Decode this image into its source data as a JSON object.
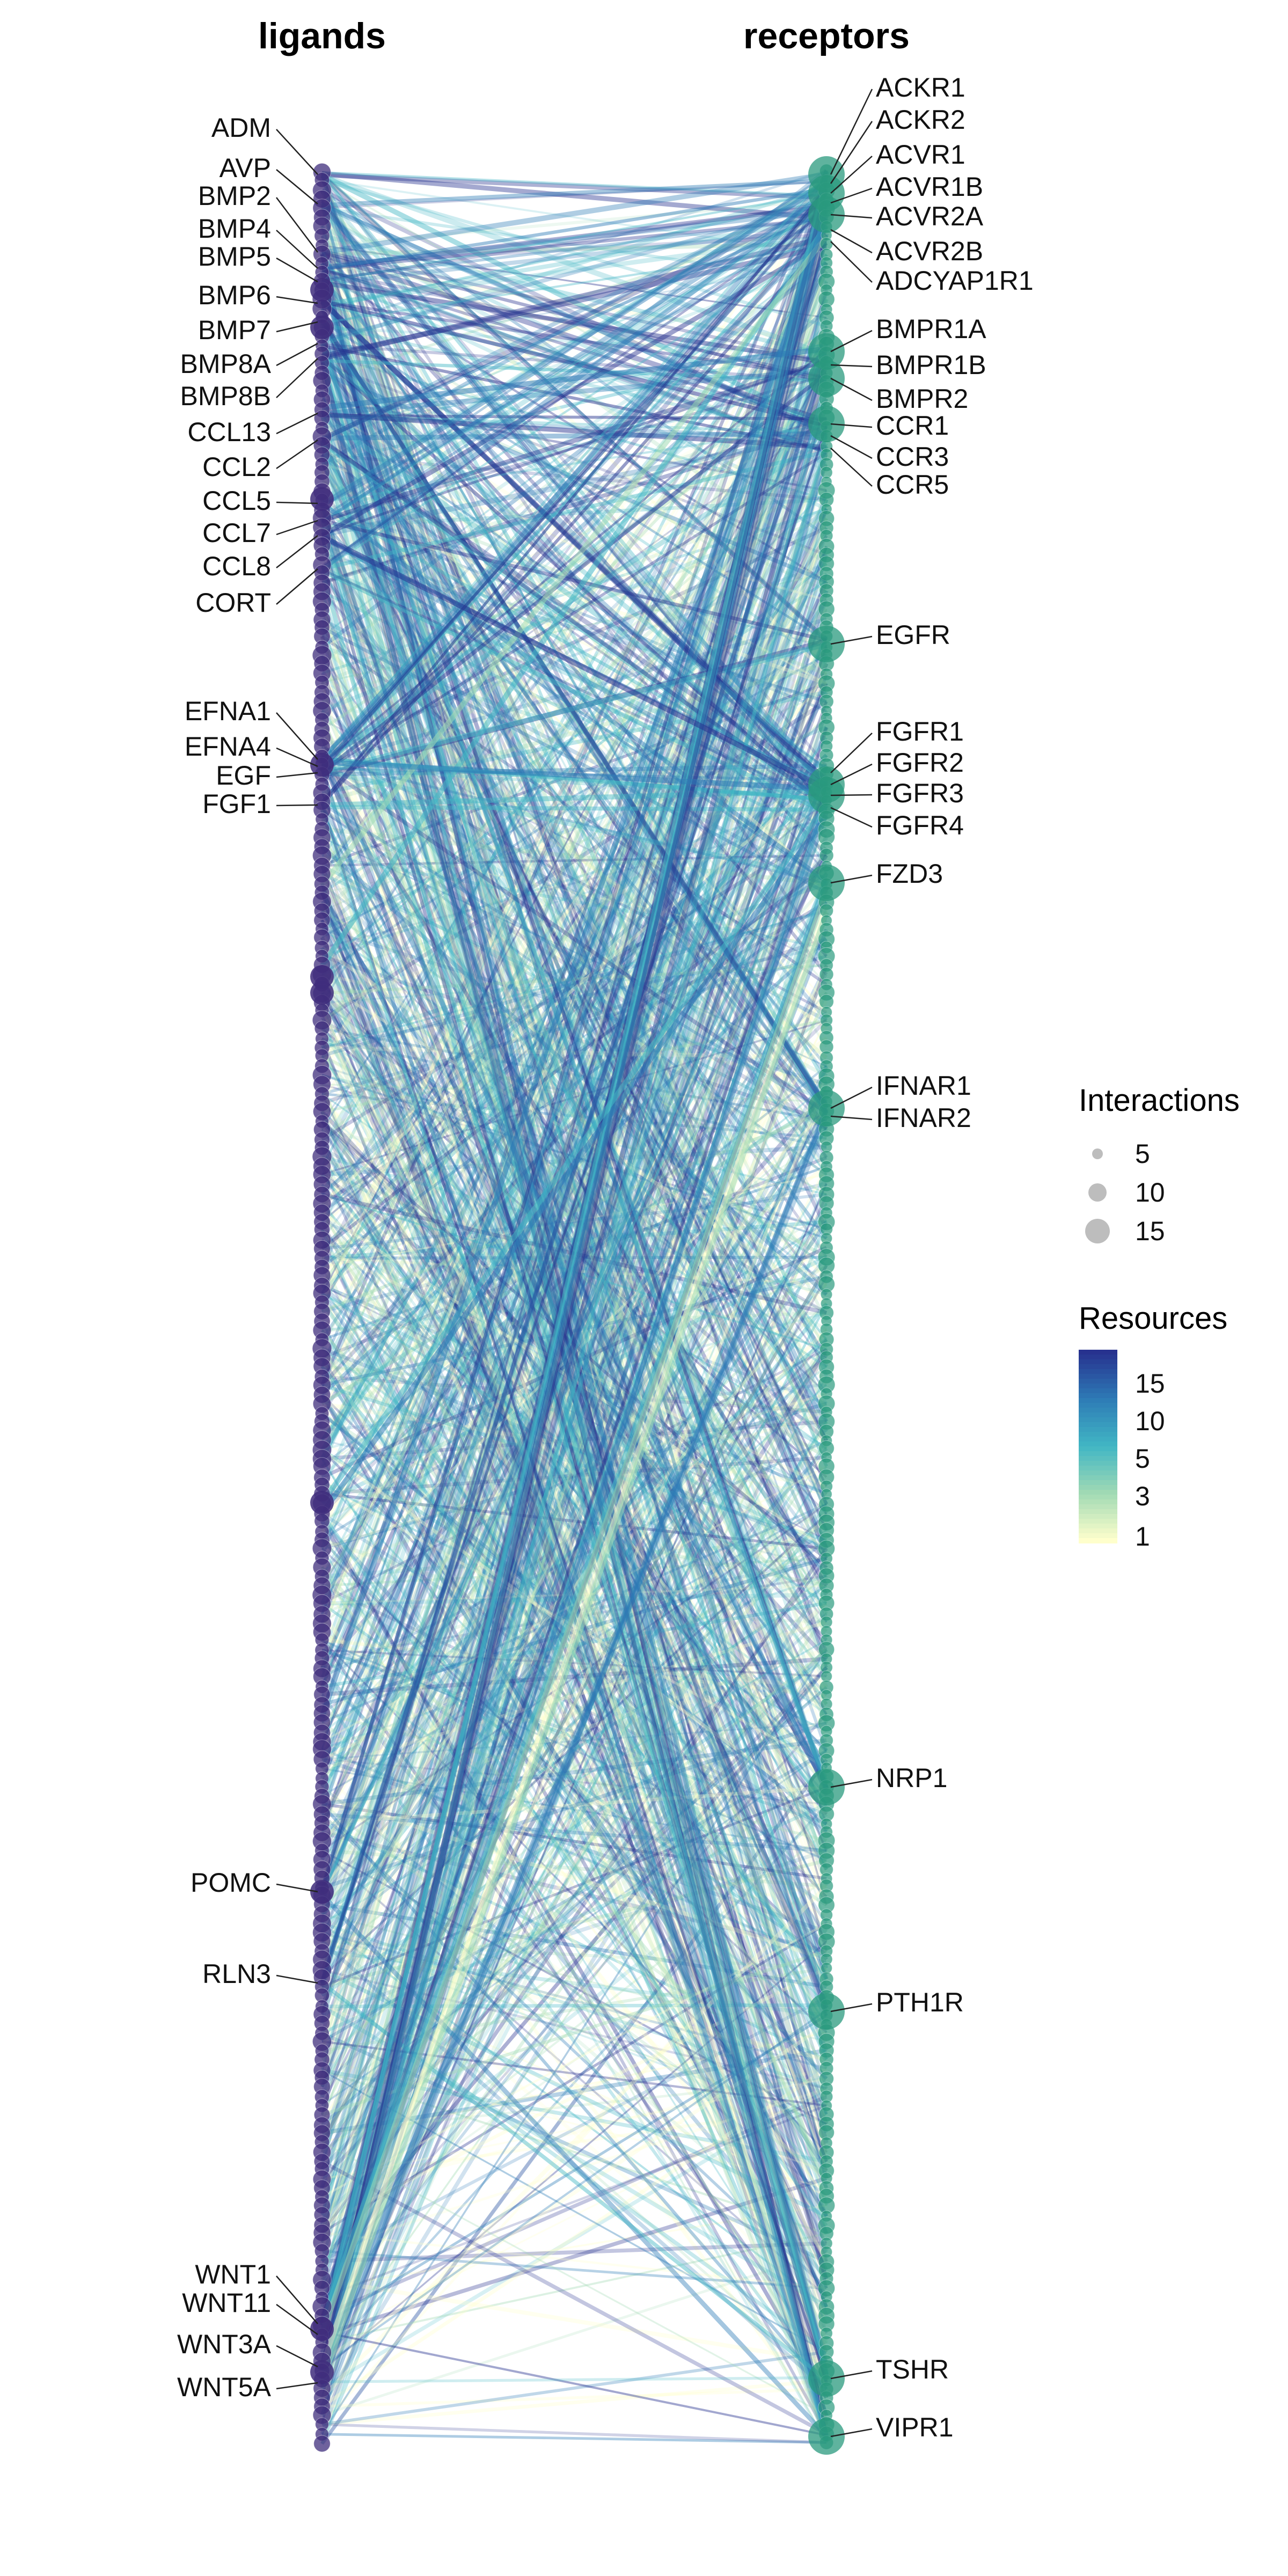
{
  "chart_data": {
    "type": "diagram",
    "left_axis_label": "ligands",
    "right_axis_label": "receptors",
    "left_labeled_genes": [
      "ADM",
      "AVP",
      "BMP2",
      "BMP4",
      "BMP5",
      "BMP6",
      "BMP7",
      "BMP8A",
      "BMP8B",
      "CCL13",
      "CCL2",
      "CCL5",
      "CCL7",
      "CCL8",
      "CORT",
      "EFNA1",
      "EFNA4",
      "EGF",
      "FGF1",
      "POMC",
      "RLN3",
      "WNT1",
      "WNT11",
      "WNT3A",
      "WNT5A"
    ],
    "right_labeled_genes": [
      "ACKR1",
      "ACKR2",
      "ACVR1",
      "ACVR1B",
      "ACVR2A",
      "ACVR2B",
      "ADCYAP1R1",
      "BMPR1A",
      "BMPR1B",
      "BMPR2",
      "CCR1",
      "CCR3",
      "CCR5",
      "EGFR",
      "FGFR1",
      "FGFR2",
      "FGFR3",
      "FGFR4",
      "FZD3",
      "IFNAR1",
      "IFNAR2",
      "NRP1",
      "PTH1R",
      "TSHR",
      "VIPR1"
    ],
    "legend": {
      "interactions": {
        "title": "Interactions",
        "entries": [
          {
            "label": "5",
            "value": 5
          },
          {
            "label": "10",
            "value": 10
          },
          {
            "label": "15",
            "value": 15
          }
        ]
      },
      "resources": {
        "title": "Resources",
        "tick_labels": [
          "15",
          "10",
          "5",
          "3",
          "1"
        ],
        "colors": [
          "#27328f",
          "#2d7bb6",
          "#41b6c4",
          "#a1dab4",
          "#ffffcc"
        ]
      }
    },
    "colors": {
      "ligand_node": "#3f2d7c",
      "receptor_node": "#2a9a7e"
    }
  }
}
